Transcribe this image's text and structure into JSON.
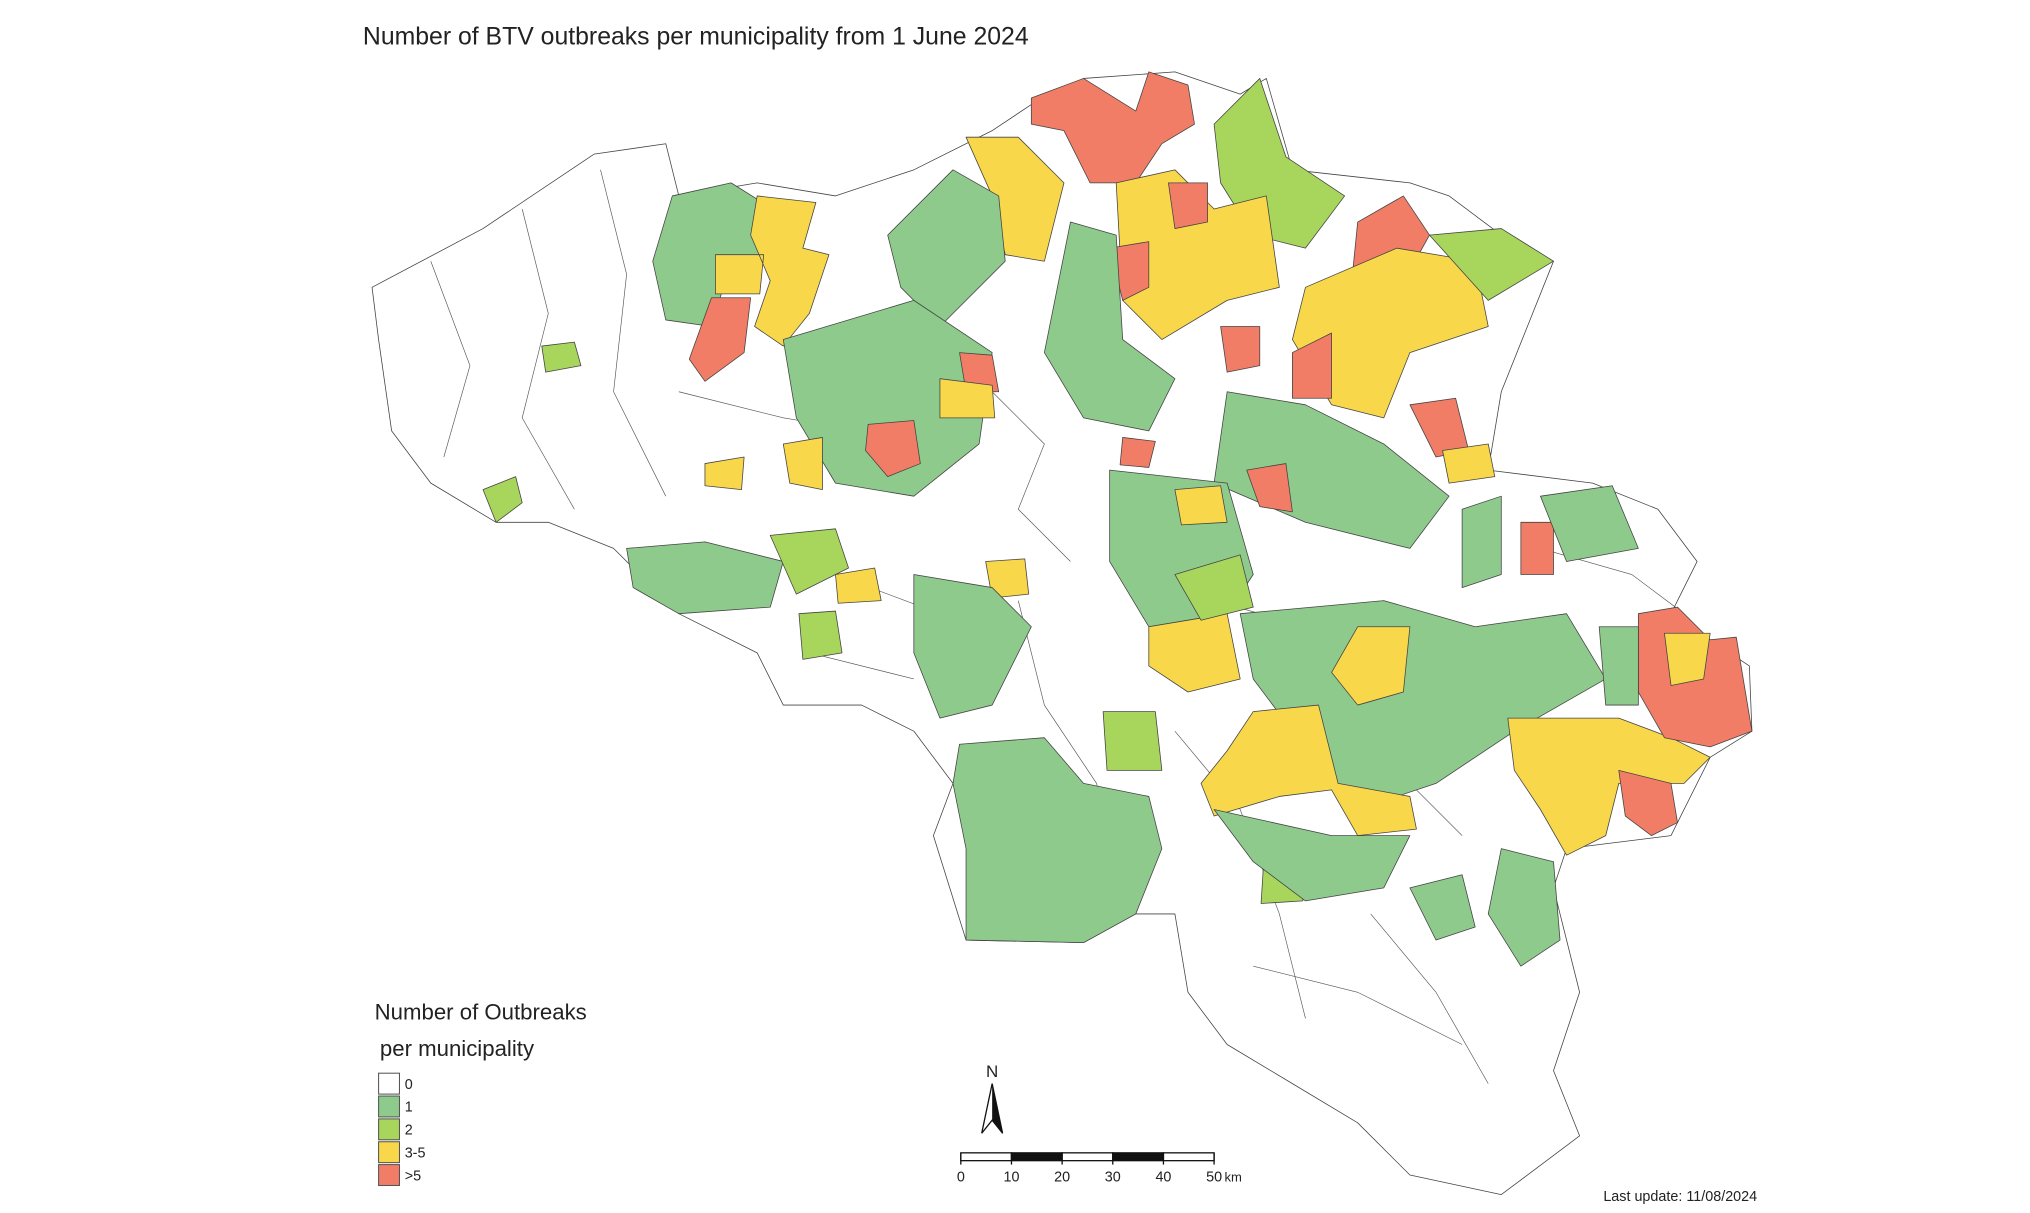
{
  "title": "Number of BTV outbreaks per municipality from 1 June 2024",
  "legend": {
    "title_line1": "Number of Outbreaks",
    "title_line2": "per municipality",
    "items": [
      {
        "label": "0",
        "color": "#ffffff"
      },
      {
        "label": "1",
        "color": "#8fca8d"
      },
      {
        "label": "2",
        "color": "#a8d65c"
      },
      {
        "label": "3-5",
        "color": "#f8d84a"
      },
      {
        "label": ">5",
        "color": "#f27d66"
      }
    ]
  },
  "north": "N",
  "scale_bar": {
    "ticks": [
      0,
      10,
      20,
      30,
      40,
      50
    ],
    "unit": "km"
  },
  "last_update": "Last update: 11/08/2024"
}
